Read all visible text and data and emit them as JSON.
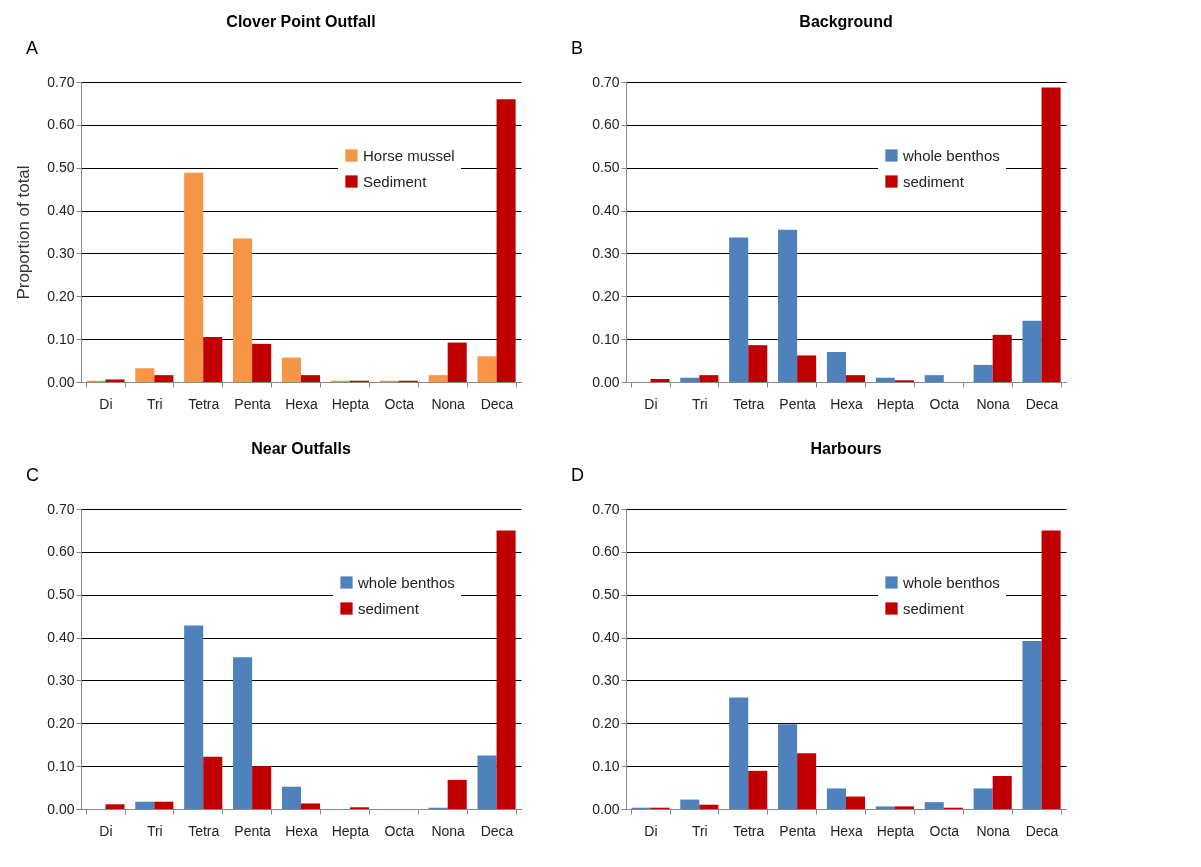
{
  "chart_data": [
    {
      "type": "bar",
      "title": "Clover Point Outfall",
      "ylabel": "Proportion of total",
      "annotations": [
        "A"
      ],
      "categories": [
        "Di",
        "Tri",
        "Tetra",
        "Penta",
        "Hexa",
        "Hepta",
        "Octa",
        "Nona",
        "Deca"
      ],
      "series": [
        {
          "name": "Horse mussel",
          "color": "#f79646",
          "values": [
            0.003,
            0.032,
            0.488,
            0.335,
            0.057,
            0.003,
            0.003,
            0.016,
            0.06
          ]
        },
        {
          "name": "Sediment",
          "color": "#c00000",
          "values": [
            0.006,
            0.016,
            0.105,
            0.089,
            0.016,
            0.003,
            0.003,
            0.092,
            0.66
          ]
        }
      ],
      "ylim": [
        0,
        0.7
      ],
      "yticks": [
        {
          "value": 0,
          "label": "0.00"
        },
        {
          "value": 0.1,
          "label": "0.10"
        },
        {
          "value": 0.2,
          "label": "0.20"
        },
        {
          "value": 0.3,
          "label": "0.30"
        },
        {
          "value": 0.4,
          "label": "0.40"
        },
        {
          "value": 0.5,
          "label": "0.50"
        },
        {
          "value": 0.6,
          "label": "0.60"
        },
        {
          "value": 0.7,
          "label": "0.70"
        }
      ],
      "grid": "y",
      "legend": "top right"
    },
    {
      "type": "bar",
      "title": "Background",
      "annotations": [
        "B"
      ],
      "categories": [
        "Di",
        "Tri",
        "Tetra",
        "Penta",
        "Hexa",
        "Hepta",
        "Octa",
        "Nona",
        "Deca"
      ],
      "series": [
        {
          "name": "whole benthos",
          "color": "#4f81bd",
          "values": [
            0,
            0.01,
            0.337,
            0.355,
            0.07,
            0.01,
            0.016,
            0.04,
            0.143
          ]
        },
        {
          "name": "sediment",
          "color": "#c00000",
          "values": [
            0.007,
            0.016,
            0.086,
            0.062,
            0.016,
            0.004,
            0,
            0.11,
            0.687
          ]
        }
      ],
      "ylim": [
        0,
        0.7
      ],
      "yticks": [
        {
          "value": 0,
          "label": "0.00"
        },
        {
          "value": 0.1,
          "label": "0.10"
        },
        {
          "value": 0.2,
          "label": "0.20"
        },
        {
          "value": 0.3,
          "label": "0.30"
        },
        {
          "value": 0.4,
          "label": "0.40"
        },
        {
          "value": 0.5,
          "label": "0.50"
        },
        {
          "value": 0.6,
          "label": "0.60"
        },
        {
          "value": 0.7,
          "label": "0.70"
        }
      ],
      "grid": "y",
      "legend": "top right"
    },
    {
      "type": "bar",
      "title": "Near Outfalls",
      "annotations": [
        "C"
      ],
      "categories": [
        "Di",
        "Tri",
        "Tetra",
        "Penta",
        "Hexa",
        "Hepta",
        "Octa",
        "Nona",
        "Deca"
      ],
      "series": [
        {
          "name": "whole benthos",
          "color": "#4f81bd",
          "values": [
            0,
            0.017,
            0.428,
            0.354,
            0.052,
            0,
            0,
            0.003,
            0.125
          ]
        },
        {
          "name": "sediment",
          "color": "#c00000",
          "values": [
            0.011,
            0.017,
            0.122,
            0.1,
            0.013,
            0.004,
            0,
            0.068,
            0.65
          ]
        }
      ],
      "ylim": [
        0,
        0.7
      ],
      "yticks": [
        {
          "value": 0,
          "label": "0.00"
        },
        {
          "value": 0.1,
          "label": "0.10"
        },
        {
          "value": 0.2,
          "label": "0.20"
        },
        {
          "value": 0.3,
          "label": "0.30"
        },
        {
          "value": 0.4,
          "label": "0.40"
        },
        {
          "value": 0.5,
          "label": "0.50"
        },
        {
          "value": 0.6,
          "label": "0.60"
        },
        {
          "value": 0.7,
          "label": "0.70"
        }
      ],
      "grid": "y",
      "legend": "top right"
    },
    {
      "type": "bar",
      "title": "Harbours",
      "annotations": [
        "D"
      ],
      "categories": [
        "Di",
        "Tri",
        "Tetra",
        "Penta",
        "Hexa",
        "Hepta",
        "Octa",
        "Nona",
        "Deca"
      ],
      "series": [
        {
          "name": "whole benthos",
          "color": "#4f81bd",
          "values": [
            0.003,
            0.022,
            0.26,
            0.198,
            0.048,
            0.006,
            0.016,
            0.048,
            0.392
          ]
        },
        {
          "name": "sediment",
          "color": "#c00000",
          "values": [
            0.003,
            0.01,
            0.089,
            0.13,
            0.029,
            0.006,
            0.003,
            0.077,
            0.65
          ]
        }
      ],
      "ylim": [
        0,
        0.7
      ],
      "yticks": [
        {
          "value": 0,
          "label": "0.00"
        },
        {
          "value": 0.1,
          "label": "0.10"
        },
        {
          "value": 0.2,
          "label": "0.20"
        },
        {
          "value": 0.3,
          "label": "0.30"
        },
        {
          "value": 0.4,
          "label": "0.40"
        },
        {
          "value": 0.5,
          "label": "0.50"
        },
        {
          "value": 0.6,
          "label": "0.60"
        },
        {
          "value": 0.7,
          "label": "0.70"
        }
      ],
      "grid": "y",
      "legend": "top right"
    }
  ]
}
